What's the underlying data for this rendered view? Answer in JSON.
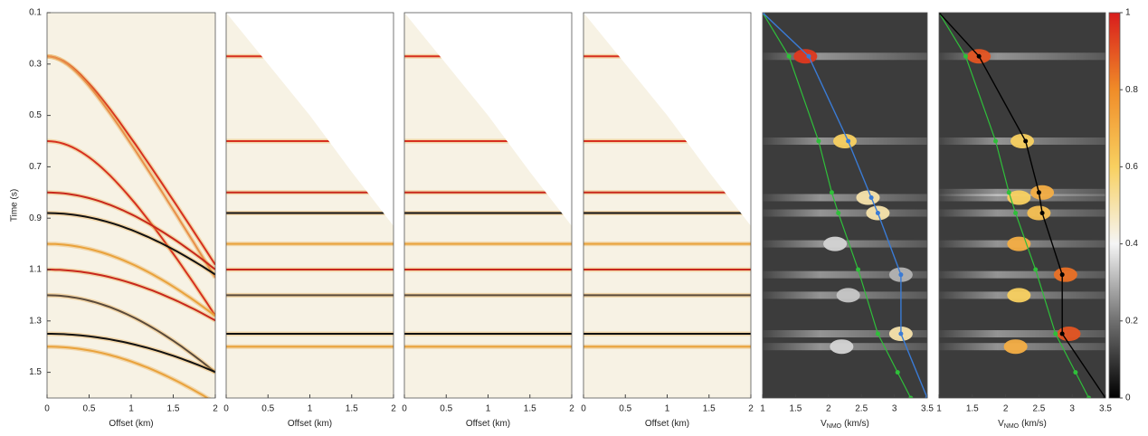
{
  "chart_data": [
    {
      "type": "gather",
      "ylabel": "Time (s)",
      "xlabel": "Offset (km)",
      "xlim": [
        0,
        2
      ],
      "xticks": [
        0,
        0.5,
        1,
        1.5,
        2
      ],
      "ylim": [
        0.1,
        1.6
      ],
      "yticks": [
        0.1,
        0.3,
        0.5,
        0.7,
        0.9,
        1.1,
        1.3,
        1.5
      ],
      "background": "#f7f2e4",
      "events": {
        "t0": [
          0.27,
          0.27,
          0.6,
          0.8,
          0.88,
          1.0,
          1.1,
          1.2,
          1.35,
          1.4
        ],
        "v": [
          1.91,
          1.82,
          1.77,
          2.65,
          2.89,
          2.5,
          2.9,
          2.22,
          3.07,
          2.46
        ],
        "color": [
          "#d7301f",
          "#e8904a",
          "#d7301f",
          "#c8281c",
          "#111111",
          "#e9a23b",
          "#c8281c",
          "#5a4a3a",
          "#111111",
          "#e9a23b"
        ]
      }
    },
    {
      "type": "nmo-gather",
      "xlabel": "Offset (km)",
      "xlim": [
        0,
        2
      ],
      "xticks": [
        0,
        0.5,
        1,
        1.5,
        2
      ],
      "ylim": [
        0.1,
        1.6
      ],
      "background": "#f7f2e4",
      "mute": {
        "x": [
          0,
          0.5,
          1,
          1.5,
          2
        ],
        "t": [
          0.1,
          0.3,
          0.5,
          0.72,
          0.93
        ]
      },
      "events": {
        "t0": [
          0.27,
          0.6,
          0.8,
          0.88,
          1.0,
          1.1,
          1.2,
          1.35,
          1.4
        ],
        "color": [
          "#d7301f",
          "#d7301f",
          "#c8281c",
          "#111111",
          "#e9a23b",
          "#c8281c",
          "#5a4a3a",
          "#111111",
          "#e9a23b"
        ]
      }
    },
    {
      "type": "nmo-gather",
      "xlabel": "Offset (km)",
      "xlim": [
        0,
        2
      ],
      "xticks": [
        0,
        0.5,
        1,
        1.5,
        2
      ],
      "ylim": [
        0.1,
        1.6
      ],
      "background": "#f7f2e4",
      "mute": {
        "x": [
          0,
          0.5,
          1,
          1.5,
          2
        ],
        "t": [
          0.1,
          0.3,
          0.5,
          0.72,
          0.93
        ]
      },
      "events": {
        "t0": [
          0.27,
          0.6,
          0.8,
          0.88,
          1.0,
          1.1,
          1.2,
          1.35,
          1.4
        ],
        "color": [
          "#d7301f",
          "#d7301f",
          "#c8281c",
          "#111111",
          "#e9a23b",
          "#c8281c",
          "#5a4a3a",
          "#111111",
          "#e9a23b"
        ]
      }
    },
    {
      "type": "nmo-gather",
      "xlabel": "Offset (km)",
      "xlim": [
        0,
        2
      ],
      "xticks": [
        0,
        0.5,
        1,
        1.5,
        2
      ],
      "ylim": [
        0.1,
        1.6
      ],
      "background": "#f7f2e4",
      "mute": {
        "x": [
          0,
          0.5,
          1,
          1.5,
          2
        ],
        "t": [
          0.1,
          0.3,
          0.5,
          0.72,
          0.93
        ]
      },
      "events": {
        "t0": [
          0.27,
          0.6,
          0.8,
          0.88,
          1.0,
          1.1,
          1.2,
          1.35,
          1.4
        ],
        "color": [
          "#d7301f",
          "#d7301f",
          "#c8281c",
          "#111111",
          "#e9a23b",
          "#c8281c",
          "#5a4a3a",
          "#111111",
          "#e9a23b"
        ]
      }
    },
    {
      "type": "semblance",
      "xlabel": "V",
      "xlabel_sub": "NMO",
      "xlabel_unit": "(km/s)",
      "xlim": [
        1,
        3.5
      ],
      "xticks": [
        1,
        1.5,
        2,
        2.5,
        3,
        3.5
      ],
      "ylim": [
        0.1,
        1.6
      ],
      "background": "#3c3c3c",
      "semblance": {
        "x": [
          1.65,
          2.25,
          2.6,
          2.75,
          3.1,
          3.1,
          2.1,
          2.3,
          2.2
        ],
        "y": [
          0.27,
          0.6,
          0.82,
          0.88,
          1.12,
          1.35,
          1.0,
          1.2,
          1.4
        ],
        "values": [
          0.95,
          0.6,
          0.5,
          0.5,
          0.3,
          0.5,
          0.35,
          0.33,
          0.35
        ]
      },
      "picks": {
        "color": "#3a7bd5",
        "x": [
          1.0,
          1.7,
          2.3,
          2.65,
          2.75,
          3.1,
          3.1,
          3.5
        ],
        "y": [
          0.1,
          0.27,
          0.6,
          0.82,
          0.88,
          1.12,
          1.35,
          1.6
        ]
      },
      "trend": {
        "color": "#2fbf3a",
        "x": [
          1.0,
          1.4,
          1.85,
          2.05,
          2.15,
          2.45,
          2.75,
          3.05,
          3.25
        ],
        "y": [
          0.1,
          0.27,
          0.6,
          0.8,
          0.88,
          1.1,
          1.35,
          1.5,
          1.6
        ]
      }
    },
    {
      "type": "semblance",
      "xlabel": "V",
      "xlabel_sub": "NMO",
      "xlabel_unit": "(km/s)",
      "xlim": [
        1,
        3.5
      ],
      "xticks": [
        1,
        1.5,
        2,
        2.5,
        3,
        3.5
      ],
      "ylim": [
        0.1,
        1.6
      ],
      "background": "#3c3c3c",
      "semblance": {
        "x": [
          1.6,
          2.25,
          2.2,
          2.55,
          2.5,
          2.2,
          2.9,
          2.2,
          2.95,
          2.15
        ],
        "y": [
          0.27,
          0.6,
          0.82,
          0.8,
          0.88,
          1.0,
          1.12,
          1.2,
          1.35,
          1.4
        ],
        "values": [
          0.9,
          0.6,
          0.6,
          0.7,
          0.65,
          0.7,
          0.85,
          0.6,
          0.9,
          0.7
        ]
      },
      "picks": {
        "color": "#000000",
        "x": [
          1.0,
          1.6,
          2.3,
          2.5,
          2.55,
          2.85,
          2.85,
          3.5
        ],
        "y": [
          0.1,
          0.27,
          0.6,
          0.8,
          0.88,
          1.12,
          1.35,
          1.6
        ]
      },
      "trend": {
        "color": "#2fbf3a",
        "x": [
          1.0,
          1.4,
          1.85,
          2.05,
          2.15,
          2.45,
          2.75,
          3.05,
          3.25
        ],
        "y": [
          0.1,
          0.27,
          0.6,
          0.8,
          0.88,
          1.1,
          1.35,
          1.5,
          1.6
        ]
      }
    },
    {
      "type": "colorbar",
      "ylim": [
        0,
        1
      ],
      "yticks": [
        0,
        0.2,
        0.4,
        0.6,
        0.8,
        1
      ],
      "colormap": [
        "#000000",
        "#707070",
        "#f5f5f5",
        "#f8d060",
        "#f08c28",
        "#d81c1c"
      ]
    }
  ]
}
